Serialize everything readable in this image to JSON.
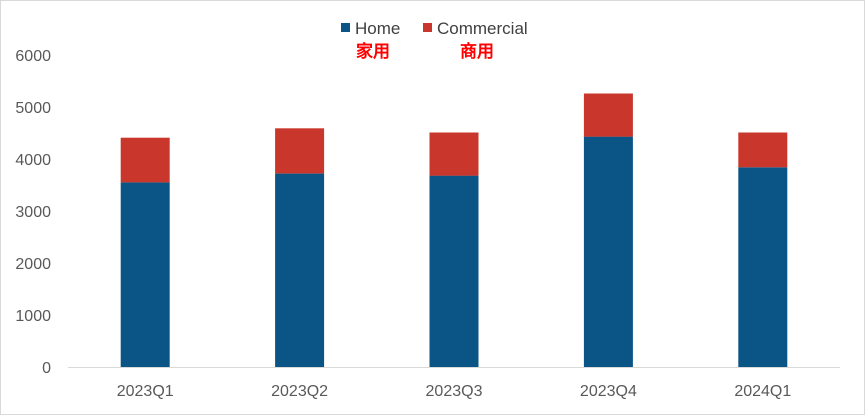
{
  "chart_data": {
    "type": "bar",
    "stacked": true,
    "categories": [
      "2023Q1",
      "2023Q2",
      "2023Q3",
      "2023Q4",
      "2024Q1"
    ],
    "series": [
      {
        "name": "Home",
        "color": "#0b5486",
        "values": [
          3550,
          3720,
          3680,
          4430,
          3840
        ]
      },
      {
        "name": "Commercial",
        "color": "#c9372c",
        "values": [
          860,
          870,
          830,
          830,
          670
        ]
      }
    ],
    "ylim": [
      0,
      6000
    ],
    "yticks": [
      0,
      1000,
      2000,
      3000,
      4000,
      5000,
      6000
    ],
    "grid": false,
    "legend_position": "top-center"
  },
  "annotations": {
    "home_cn": "家用",
    "commercial_cn": "商用",
    "color": "#ff0000"
  }
}
